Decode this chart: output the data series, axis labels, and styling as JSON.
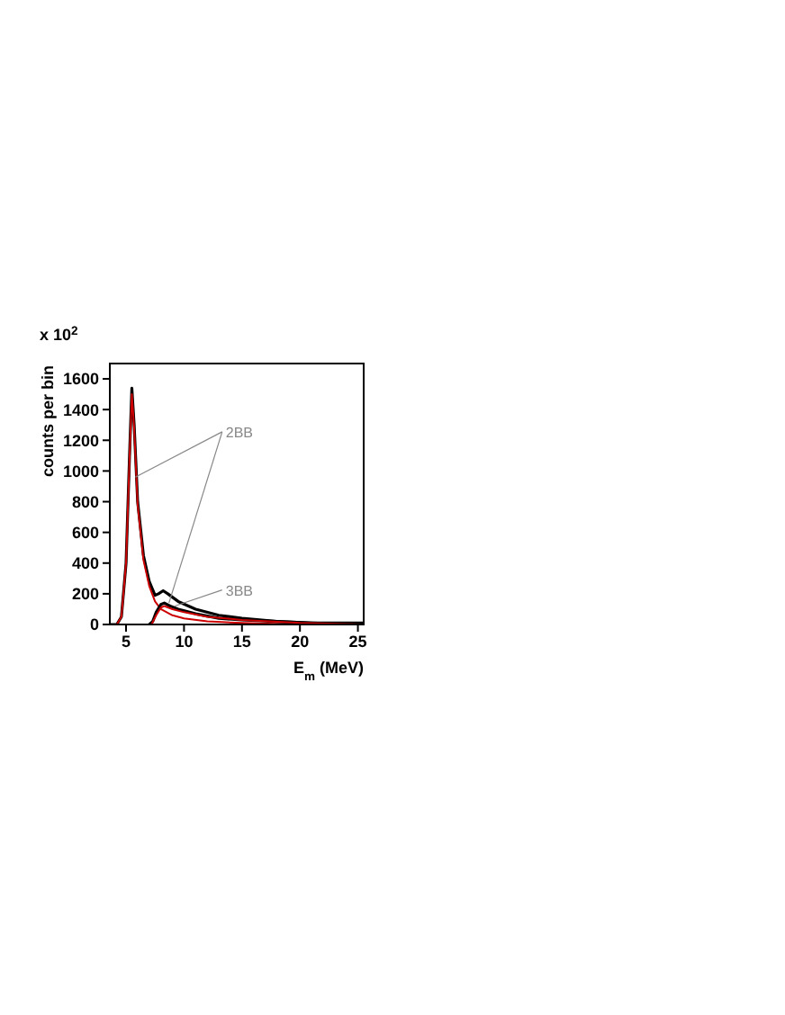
{
  "chart_data": {
    "type": "line",
    "xlabel": "E$_{m}$ (MeV)",
    "ylabel": "counts per bin",
    "xlim": [
      3.6,
      25.5
    ],
    "xticks": [
      5,
      10,
      15,
      20,
      25
    ],
    "ylim": [
      0,
      1700
    ],
    "yticks": [
      0,
      200,
      400,
      600,
      800,
      1000,
      1200,
      1400,
      1600
    ],
    "marker": "none",
    "line_style": "solid",
    "annotations": [
      "x 10$^{2}$",
      {
        "text": "2BB",
        "x": 5.8,
        "y": 960
      },
      {
        "text": "3BB",
        "x": 9.2,
        "y": 120
      }
    ],
    "series": [
      {
        "color": "#000000",
        "x": [
          3.6,
          4.2,
          4.6,
          5.0,
          5.3,
          5.5,
          5.7,
          6.0,
          6.5,
          7.0,
          7.5,
          7.8,
          8.2,
          8.6,
          9.5,
          11,
          13,
          15,
          18,
          21,
          25.5
        ],
        "values": [
          0,
          0,
          50,
          400,
          1100,
          1540,
          1300,
          800,
          450,
          280,
          190,
          200,
          220,
          200,
          150,
          100,
          60,
          40,
          20,
          10,
          10
        ]
      },
      {
        "color": "#cc0000",
        "x": [
          3.6,
          4.2,
          4.6,
          5.0,
          5.3,
          5.5,
          5.7,
          6.0,
          6.5,
          7.0,
          7.5,
          8.0,
          9.0,
          10,
          12,
          15,
          20,
          25.5
        ],
        "values": [
          0,
          0,
          50,
          400,
          1080,
          1500,
          1280,
          780,
          420,
          250,
          150,
          100,
          60,
          40,
          20,
          10,
          0,
          0
        ]
      },
      {
        "color": "#000000",
        "x": [
          7.0,
          7.3,
          7.6,
          8.0,
          8.3,
          8.8,
          9.5,
          11,
          13,
          15,
          18,
          21,
          25.5
        ],
        "values": [
          0,
          20,
          80,
          130,
          140,
          120,
          100,
          70,
          40,
          30,
          20,
          10,
          0
        ]
      },
      {
        "color": "#cc0000",
        "x": [
          7.2,
          7.6,
          8.0,
          8.3,
          9.0,
          10,
          12,
          15,
          20,
          25.5
        ],
        "values": [
          0,
          60,
          110,
          120,
          100,
          80,
          50,
          30,
          10,
          0
        ]
      }
    ]
  }
}
